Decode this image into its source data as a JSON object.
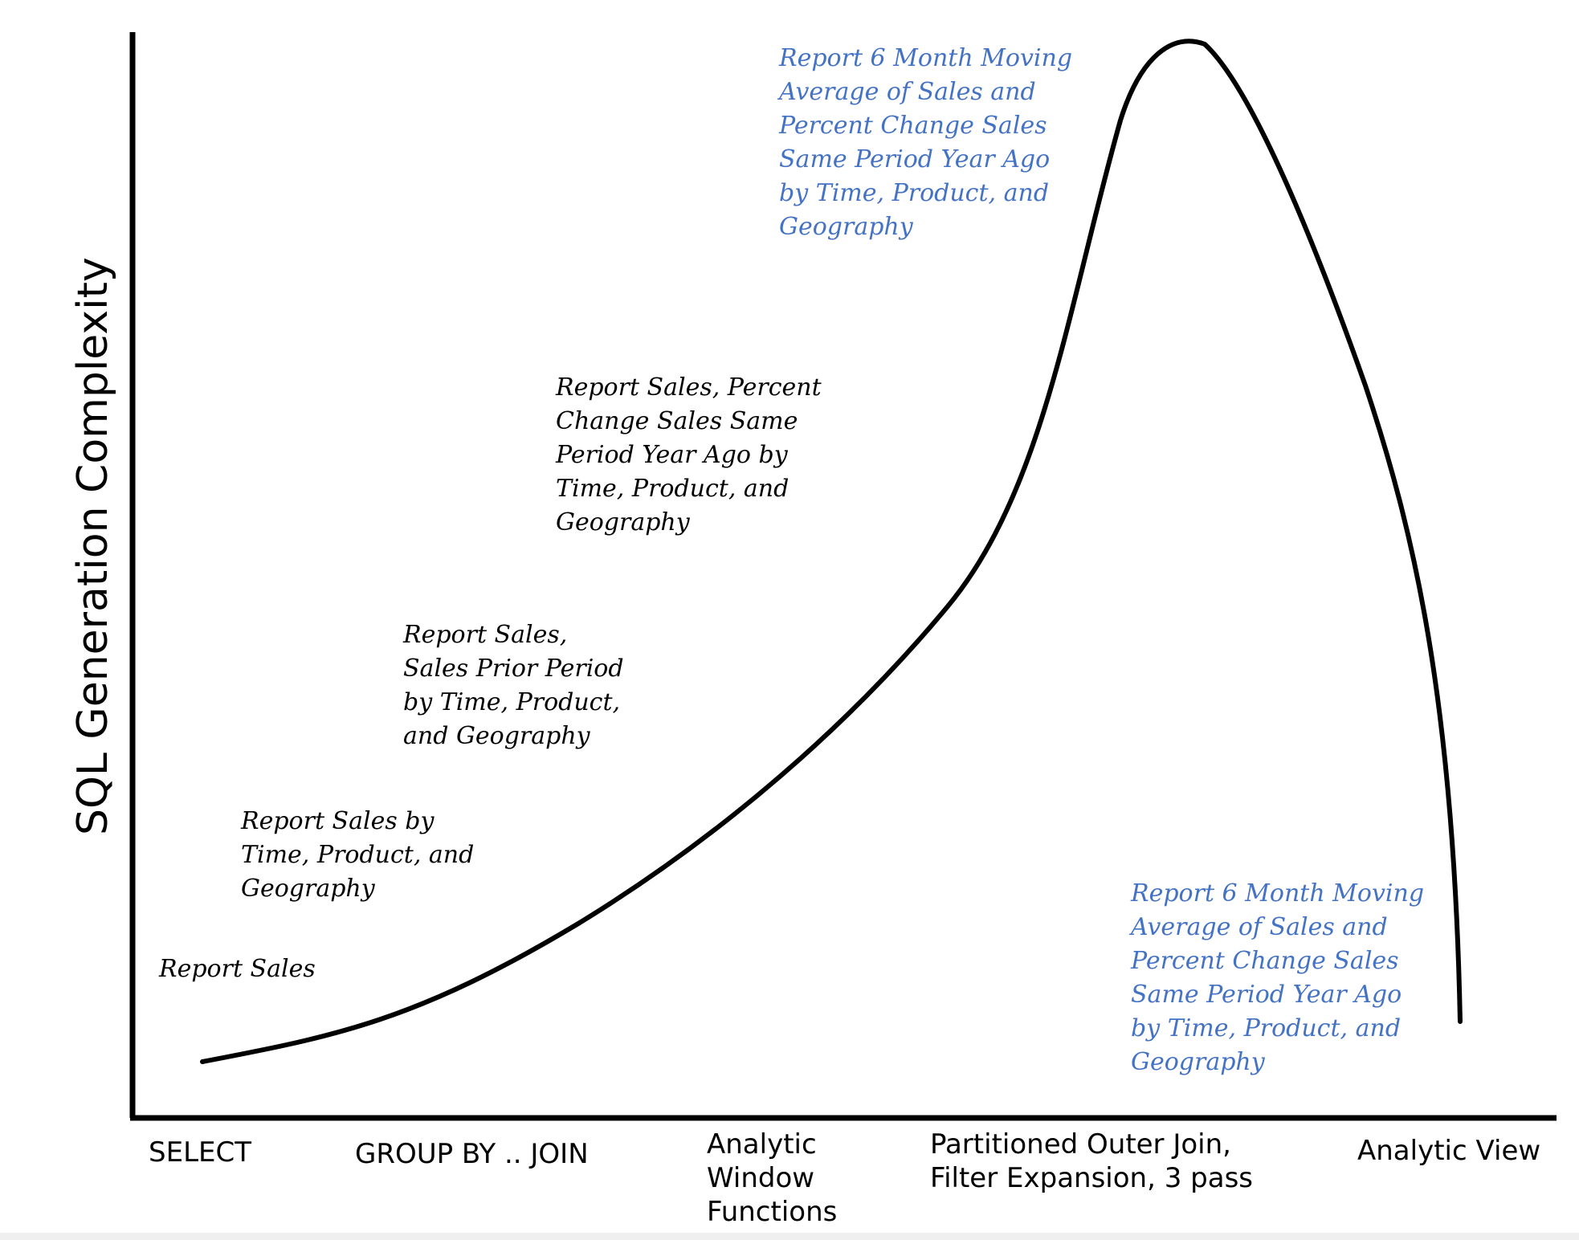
{
  "axes": {
    "y_label": "SQL Generation Complexity"
  },
  "x_categories": [
    "SELECT",
    "GROUP BY .. JOIN",
    "Analytic\nWindow\nFunctions",
    "Partitioned Outer Join,\nFilter Expansion, 3 pass",
    "Analytic View"
  ],
  "annotations": {
    "report_sales": "Report Sales",
    "report_by_dims": "Report Sales by\nTime, Product, and\nGeography",
    "report_prior_period": "Report Sales,\nSales Prior Period\nby Time, Product,\nand Geography",
    "report_pct_change": "Report Sales, Percent\nChange Sales Same\nPeriod Year Ago by\nTime, Product, and\nGeography",
    "report_moving_avg_peak": "Report 6 Month Moving\nAverage of Sales and\nPercent Change Sales\nSame Period Year Ago\nby Time, Product, and\nGeography",
    "report_moving_avg_av": "Report 6 Month Moving\nAverage of Sales and\nPercent Change Sales\nSame Period Year Ago\nby Time, Product, and\nGeography"
  },
  "colors": {
    "axis": "#000000",
    "curve": "#000000",
    "highlight_text": "#4472c4"
  }
}
